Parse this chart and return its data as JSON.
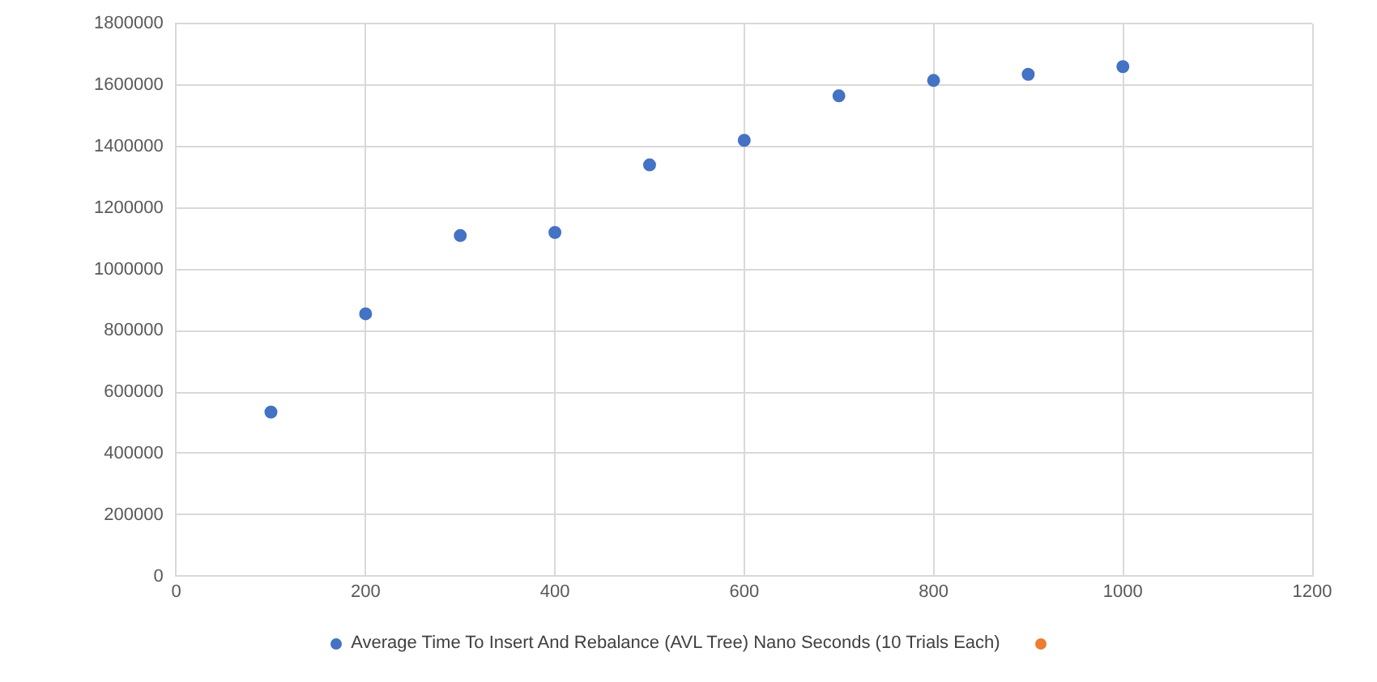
{
  "chart_data": {
    "type": "scatter",
    "x": [
      100,
      200,
      300,
      400,
      500,
      600,
      700,
      800,
      900,
      1000
    ],
    "series": [
      {
        "name": "Average Time To Insert And Rebalance (AVL Tree) Nano Seconds (10 Trials Each)",
        "color": "#4472c4",
        "values": [
          535000,
          855000,
          1110000,
          1120000,
          1340000,
          1420000,
          1565000,
          1615000,
          1635000,
          1660000
        ]
      }
    ],
    "xlim": [
      0,
      1200
    ],
    "xticks": [
      0,
      200,
      400,
      600,
      800,
      1000,
      1200
    ],
    "ylim": [
      0,
      1800000
    ],
    "yticks": [
      0,
      200000,
      400000,
      600000,
      800000,
      1000000,
      1200000,
      1400000,
      1600000,
      1800000
    ],
    "grid": true,
    "legend": "bottom",
    "marker": "circle"
  }
}
